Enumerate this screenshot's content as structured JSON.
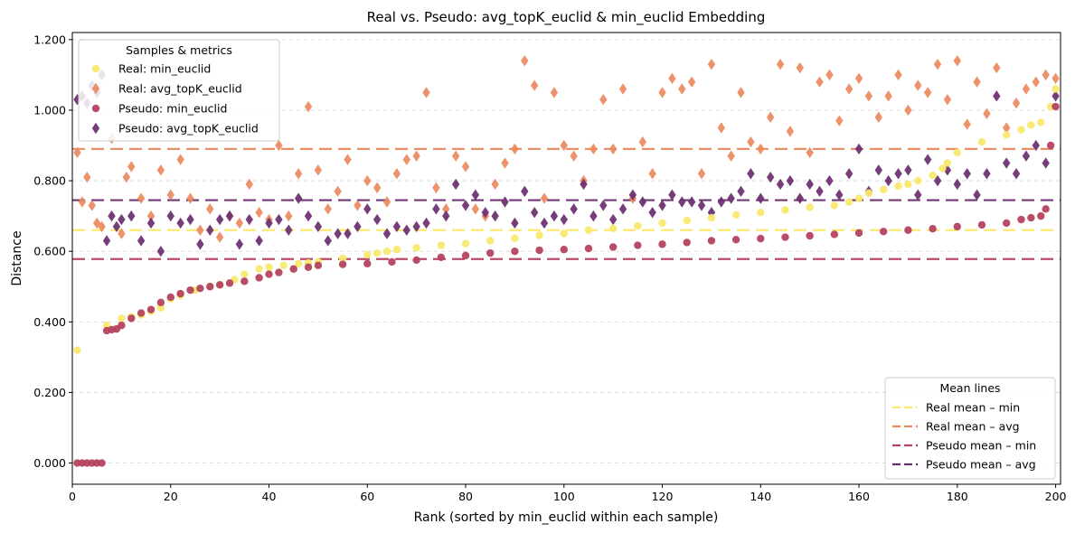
{
  "chart_data": {
    "type": "scatter",
    "title": "Real vs. Pseudo: avg_topK_euclid & min_euclid Embedding",
    "xlabel": "Rank (sorted by min_euclid within each sample)",
    "ylabel": "Distance",
    "xlim": [
      0,
      201
    ],
    "ylim": [
      -0.06,
      1.22
    ],
    "x_ticks": [
      "0",
      "20",
      "40",
      "60",
      "80",
      "100",
      "120",
      "140",
      "160",
      "180",
      "200"
    ],
    "y_ticks": [
      "0.000",
      "0.200",
      "0.400",
      "0.600",
      "0.800",
      "1.000",
      "1.200"
    ],
    "grid": "horizontal dashed",
    "series_legend": {
      "title": "Samples & metrics",
      "placement": "top-left",
      "entries": [
        "Real: min_euclid",
        "Real: avg_topK_euclid",
        "Pseudo: min_euclid",
        "Pseudo: avg_topK_euclid"
      ]
    },
    "mean_legend": {
      "title": "Mean lines",
      "placement": "bottom-right",
      "entries": [
        "Real mean – min",
        "Real mean – avg",
        "Pseudo mean – min",
        "Pseudo mean – avg"
      ]
    },
    "colors": {
      "real_min": "#f9e96e",
      "real_avg": "#ec8a5e",
      "pseudo_min": "#b5425f",
      "pseudo_avg": "#6a2c70"
    },
    "mean_lines": {
      "real_min": 0.66,
      "real_avg": 0.89,
      "pseudo_min": 0.578,
      "pseudo_avg": 0.745
    },
    "series": [
      {
        "name": "Real: min_euclid",
        "marker": "circle",
        "x": [
          1,
          7,
          10,
          12,
          14,
          16,
          18,
          20,
          22,
          25,
          28,
          30,
          33,
          35,
          38,
          40,
          43,
          46,
          48,
          50,
          55,
          60,
          62,
          64,
          66,
          70,
          75,
          80,
          85,
          90,
          95,
          100,
          105,
          110,
          115,
          120,
          125,
          130,
          135,
          140,
          145,
          150,
          155,
          158,
          160,
          162,
          165,
          168,
          170,
          172,
          175,
          177,
          178,
          180,
          185,
          190,
          193,
          195,
          197,
          199,
          200
        ],
        "y": [
          0.32,
          0.39,
          0.41,
          0.415,
          0.42,
          0.43,
          0.44,
          0.465,
          0.475,
          0.49,
          0.5,
          0.505,
          0.52,
          0.535,
          0.55,
          0.555,
          0.56,
          0.565,
          0.567,
          0.57,
          0.58,
          0.59,
          0.595,
          0.6,
          0.605,
          0.61,
          0.617,
          0.622,
          0.63,
          0.637,
          0.645,
          0.65,
          0.66,
          0.665,
          0.672,
          0.68,
          0.687,
          0.695,
          0.703,
          0.71,
          0.717,
          0.725,
          0.73,
          0.74,
          0.75,
          0.765,
          0.775,
          0.785,
          0.79,
          0.8,
          0.815,
          0.835,
          0.85,
          0.88,
          0.91,
          0.93,
          0.945,
          0.958,
          0.965,
          1.01,
          1.06
        ]
      },
      {
        "name": "Real: avg_topK_euclid",
        "marker": "diamond",
        "x": [
          1,
          2,
          3,
          4,
          5,
          6,
          8,
          10,
          11,
          12,
          14,
          16,
          18,
          20,
          22,
          24,
          26,
          28,
          30,
          32,
          34,
          36,
          38,
          40,
          42,
          44,
          46,
          48,
          50,
          52,
          54,
          56,
          58,
          60,
          62,
          64,
          66,
          68,
          70,
          72,
          74,
          76,
          78,
          80,
          82,
          84,
          86,
          88,
          90,
          92,
          94,
          96,
          98,
          100,
          102,
          104,
          106,
          108,
          110,
          112,
          114,
          116,
          118,
          120,
          122,
          124,
          126,
          128,
          130,
          132,
          134,
          136,
          138,
          140,
          142,
          144,
          146,
          148,
          150,
          152,
          154,
          156,
          158,
          160,
          162,
          164,
          166,
          168,
          170,
          172,
          174,
          176,
          178,
          180,
          182,
          184,
          186,
          188,
          190,
          192,
          194,
          196,
          198,
          200
        ],
        "y": [
          0.88,
          0.74,
          0.81,
          0.73,
          0.68,
          0.67,
          0.92,
          0.65,
          0.81,
          0.84,
          0.75,
          0.7,
          0.83,
          0.76,
          0.86,
          0.75,
          0.66,
          0.72,
          0.64,
          0.7,
          0.68,
          0.79,
          0.71,
          0.69,
          0.9,
          0.7,
          0.82,
          1.01,
          0.83,
          0.72,
          0.77,
          0.86,
          0.73,
          0.8,
          0.78,
          0.74,
          0.82,
          0.86,
          0.87,
          1.05,
          0.78,
          0.72,
          0.87,
          0.84,
          0.72,
          0.7,
          0.79,
          0.85,
          0.89,
          1.14,
          1.07,
          0.75,
          1.05,
          0.9,
          0.87,
          0.8,
          0.89,
          1.03,
          0.89,
          1.06,
          0.75,
          0.91,
          0.82,
          1.05,
          1.09,
          1.06,
          1.08,
          0.82,
          1.13,
          0.95,
          0.87,
          1.05,
          0.91,
          0.89,
          0.98,
          1.13,
          0.94,
          1.12,
          0.88,
          1.08,
          1.1,
          0.97,
          1.06,
          1.09,
          1.04,
          0.98,
          1.04,
          1.1,
          1.0,
          1.07,
          1.05,
          1.13,
          1.03,
          1.14,
          0.96,
          1.08,
          0.99,
          1.12,
          0.95,
          1.02,
          1.06,
          1.08,
          1.1,
          1.09
        ]
      },
      {
        "name": "Pseudo: min_euclid",
        "marker": "circle",
        "x": [
          1,
          2,
          3,
          4,
          5,
          6,
          7,
          8,
          9,
          10,
          12,
          14,
          16,
          18,
          20,
          22,
          24,
          26,
          28,
          30,
          32,
          35,
          38,
          40,
          42,
          45,
          48,
          50,
          55,
          60,
          65,
          70,
          75,
          80,
          85,
          90,
          95,
          100,
          105,
          110,
          115,
          120,
          125,
          130,
          135,
          140,
          145,
          150,
          155,
          160,
          165,
          170,
          175,
          180,
          185,
          190,
          193,
          195,
          197,
          198,
          199,
          200
        ],
        "y": [
          0.0,
          0.0,
          0.0,
          0.0,
          0.0,
          0.0,
          0.375,
          0.378,
          0.38,
          0.39,
          0.41,
          0.425,
          0.435,
          0.455,
          0.47,
          0.48,
          0.49,
          0.495,
          0.5,
          0.505,
          0.51,
          0.515,
          0.525,
          0.535,
          0.54,
          0.55,
          0.555,
          0.56,
          0.563,
          0.565,
          0.57,
          0.575,
          0.583,
          0.588,
          0.595,
          0.6,
          0.603,
          0.605,
          0.608,
          0.612,
          0.617,
          0.62,
          0.625,
          0.63,
          0.633,
          0.636,
          0.64,
          0.644,
          0.648,
          0.652,
          0.656,
          0.66,
          0.664,
          0.67,
          0.675,
          0.68,
          0.69,
          0.695,
          0.7,
          0.72,
          0.9,
          1.01
        ]
      },
      {
        "name": "Pseudo: avg_topK_euclid",
        "marker": "diamond",
        "x": [
          1,
          2,
          3,
          4,
          5,
          6,
          7,
          8,
          9,
          10,
          12,
          14,
          16,
          18,
          20,
          22,
          24,
          26,
          28,
          30,
          32,
          34,
          36,
          38,
          40,
          42,
          44,
          46,
          48,
          50,
          52,
          54,
          56,
          58,
          60,
          62,
          64,
          66,
          68,
          70,
          72,
          74,
          76,
          78,
          80,
          82,
          84,
          86,
          88,
          90,
          92,
          94,
          96,
          98,
          100,
          102,
          104,
          106,
          108,
          110,
          112,
          114,
          116,
          118,
          120,
          122,
          124,
          126,
          128,
          130,
          132,
          134,
          136,
          138,
          140,
          142,
          144,
          146,
          148,
          150,
          152,
          154,
          156,
          158,
          160,
          162,
          164,
          166,
          168,
          170,
          172,
          174,
          176,
          178,
          180,
          182,
          184,
          186,
          188,
          190,
          192,
          194,
          196,
          198,
          200
        ],
        "y": [
          1.03,
          1.04,
          1.02,
          1.07,
          1.05,
          1.1,
          0.63,
          0.7,
          0.67,
          0.69,
          0.7,
          0.63,
          0.68,
          0.6,
          0.7,
          0.68,
          0.69,
          0.62,
          0.66,
          0.69,
          0.7,
          0.62,
          0.69,
          0.63,
          0.68,
          0.69,
          0.66,
          0.75,
          0.7,
          0.67,
          0.63,
          0.65,
          0.65,
          0.67,
          0.72,
          0.69,
          0.65,
          0.67,
          0.66,
          0.67,
          0.68,
          0.72,
          0.7,
          0.79,
          0.73,
          0.76,
          0.71,
          0.7,
          0.74,
          0.68,
          0.77,
          0.71,
          0.68,
          0.7,
          0.69,
          0.72,
          0.79,
          0.7,
          0.73,
          0.69,
          0.72,
          0.76,
          0.74,
          0.71,
          0.73,
          0.76,
          0.74,
          0.74,
          0.73,
          0.71,
          0.74,
          0.75,
          0.77,
          0.82,
          0.75,
          0.81,
          0.79,
          0.8,
          0.75,
          0.79,
          0.77,
          0.8,
          0.76,
          0.82,
          0.89,
          0.77,
          0.83,
          0.8,
          0.82,
          0.83,
          0.76,
          0.86,
          0.8,
          0.83,
          0.79,
          0.82,
          0.76,
          0.82,
          1.04,
          0.85,
          0.82,
          0.87,
          0.9,
          0.85,
          1.04
        ]
      }
    ]
  }
}
